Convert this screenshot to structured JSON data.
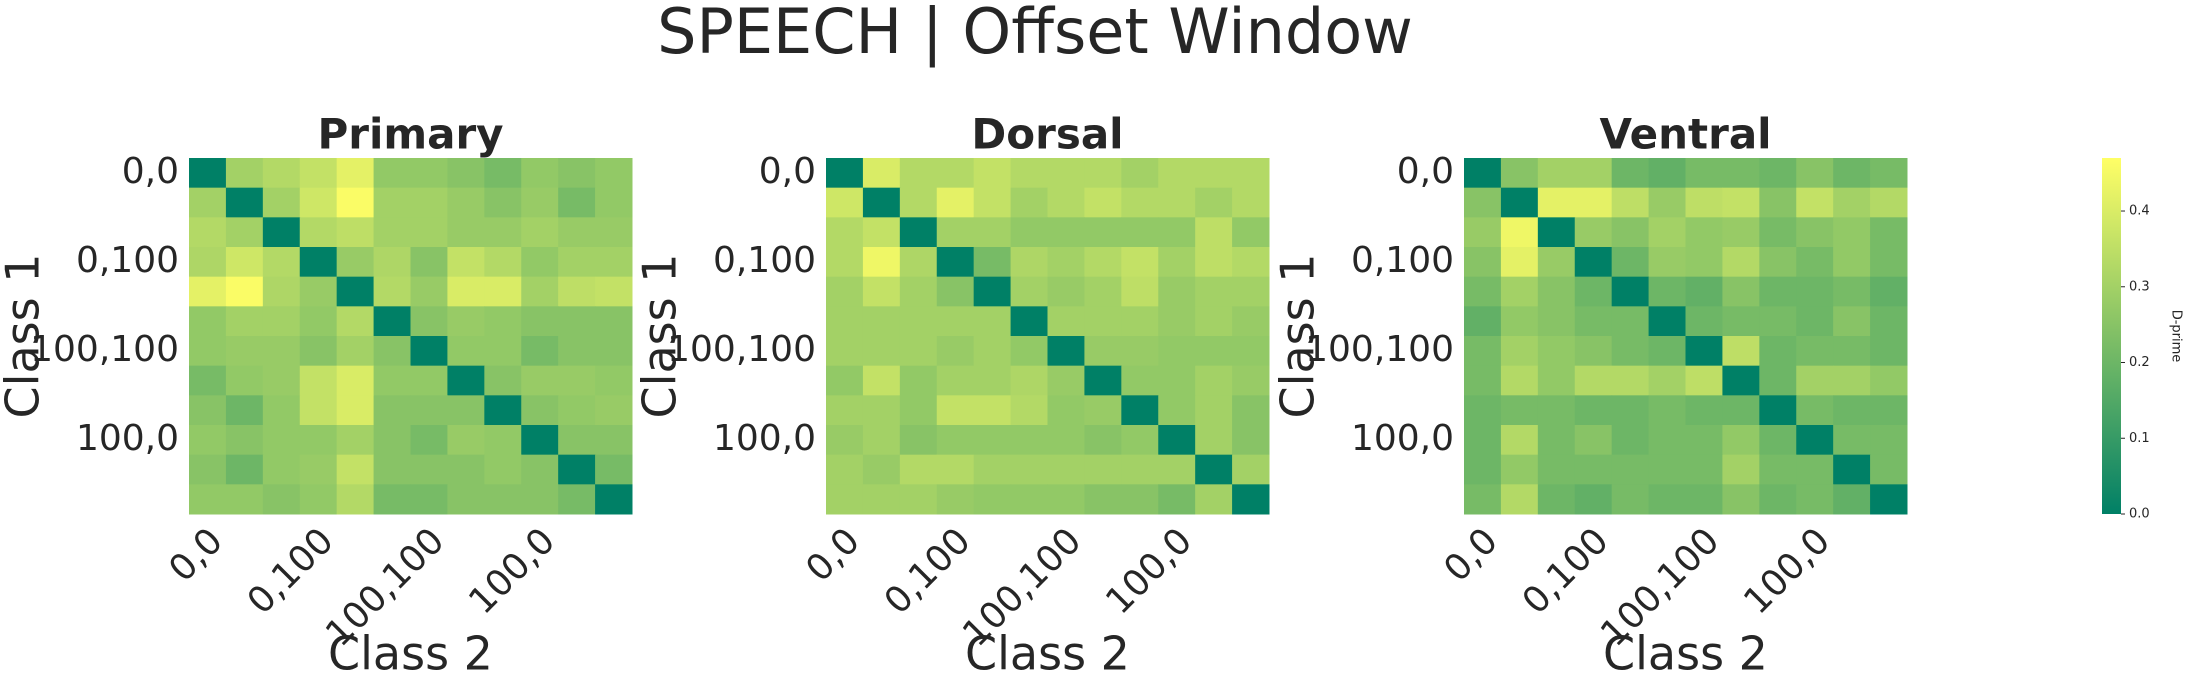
{
  "title": "SPEECH | Offset Window",
  "colorbar": {
    "label": "D-prime",
    "colormap": "summer",
    "clim": [
      0,
      0.47
    ],
    "ticks": [
      {
        "value": 0,
        "label": "0.0"
      },
      0.1,
      0.2,
      0.3,
      0.4
    ]
  },
  "chart_data": [
    {
      "type": "heatmap",
      "title": "Primary",
      "xlabel": "Class 2",
      "ylabel": "Class 1",
      "categories": [
        "0,0",
        null,
        null,
        "0,100",
        null,
        null,
        "100,100",
        null,
        null,
        "100,0",
        null,
        null
      ],
      "values": [
        [
          0,
          0.3,
          0.33,
          0.36,
          0.42,
          0.27,
          0.27,
          0.25,
          0.22,
          0.27,
          0.25,
          0.27
        ],
        [
          0.3,
          0,
          0.3,
          0.38,
          0.46,
          0.3,
          0.3,
          0.28,
          0.25,
          0.28,
          0.22,
          0.27
        ],
        [
          0.33,
          0.3,
          0,
          0.33,
          0.35,
          0.3,
          0.3,
          0.28,
          0.28,
          0.3,
          0.28,
          0.28
        ],
        [
          0.32,
          0.38,
          0.33,
          0,
          0.28,
          0.32,
          0.25,
          0.36,
          0.33,
          0.27,
          0.3,
          0.3
        ],
        [
          0.42,
          0.46,
          0.32,
          0.28,
          0,
          0.33,
          0.28,
          0.4,
          0.4,
          0.3,
          0.35,
          0.36
        ],
        [
          0.27,
          0.3,
          0.3,
          0.27,
          0.33,
          0,
          0.25,
          0.28,
          0.27,
          0.25,
          0.25,
          0.25
        ],
        [
          0.27,
          0.28,
          0.28,
          0.25,
          0.3,
          0.25,
          0,
          0.27,
          0.27,
          0.22,
          0.25,
          0.25
        ],
        [
          0.22,
          0.27,
          0.28,
          0.36,
          0.4,
          0.27,
          0.27,
          0,
          0.25,
          0.28,
          0.28,
          0.27
        ],
        [
          0.25,
          0.2,
          0.27,
          0.36,
          0.4,
          0.25,
          0.25,
          0.25,
          0,
          0.25,
          0.27,
          0.28
        ],
        [
          0.27,
          0.25,
          0.27,
          0.27,
          0.3,
          0.25,
          0.22,
          0.28,
          0.27,
          0,
          0.25,
          0.25
        ],
        [
          0.25,
          0.2,
          0.27,
          0.28,
          0.36,
          0.25,
          0.25,
          0.25,
          0.27,
          0.25,
          0,
          0.22
        ],
        [
          0.27,
          0.27,
          0.25,
          0.27,
          0.33,
          0.22,
          0.22,
          0.25,
          0.25,
          0.25,
          0.22,
          0
        ]
      ]
    },
    {
      "type": "heatmap",
      "title": "Dorsal",
      "xlabel": "Class 2",
      "ylabel": "Class 1",
      "categories": [
        "0,0",
        null,
        null,
        "0,100",
        null,
        null,
        "100,100",
        null,
        null,
        "100,0",
        null,
        null
      ],
      "values": [
        [
          0,
          0.4,
          0.33,
          0.33,
          0.36,
          0.33,
          0.33,
          0.33,
          0.3,
          0.33,
          0.33,
          0.33
        ],
        [
          0.38,
          0,
          0.33,
          0.42,
          0.36,
          0.3,
          0.33,
          0.36,
          0.33,
          0.33,
          0.3,
          0.33
        ],
        [
          0.33,
          0.36,
          0,
          0.3,
          0.3,
          0.27,
          0.27,
          0.27,
          0.27,
          0.27,
          0.35,
          0.27
        ],
        [
          0.33,
          0.44,
          0.32,
          0,
          0.22,
          0.32,
          0.3,
          0.33,
          0.36,
          0.3,
          0.35,
          0.33
        ],
        [
          0.3,
          0.36,
          0.3,
          0.25,
          0,
          0.3,
          0.28,
          0.3,
          0.35,
          0.28,
          0.3,
          0.3
        ],
        [
          0.3,
          0.3,
          0.3,
          0.3,
          0.3,
          0,
          0.3,
          0.3,
          0.3,
          0.28,
          0.3,
          0.28
        ],
        [
          0.3,
          0.3,
          0.3,
          0.28,
          0.3,
          0.27,
          0,
          0.28,
          0.28,
          0.27,
          0.27,
          0.27
        ],
        [
          0.27,
          0.36,
          0.27,
          0.3,
          0.3,
          0.32,
          0.28,
          0,
          0.27,
          0.27,
          0.3,
          0.28
        ],
        [
          0.3,
          0.3,
          0.27,
          0.36,
          0.36,
          0.33,
          0.27,
          0.28,
          0,
          0.27,
          0.3,
          0.25
        ],
        [
          0.28,
          0.3,
          0.25,
          0.27,
          0.27,
          0.27,
          0.27,
          0.25,
          0.27,
          0,
          0.3,
          0.25
        ],
        [
          0.3,
          0.28,
          0.33,
          0.33,
          0.3,
          0.3,
          0.3,
          0.3,
          0.3,
          0.3,
          0,
          0.3
        ],
        [
          0.3,
          0.3,
          0.3,
          0.28,
          0.27,
          0.27,
          0.27,
          0.25,
          0.25,
          0.22,
          0.3,
          0
        ]
      ]
    },
    {
      "type": "heatmap",
      "title": "Ventral",
      "xlabel": "Class 2",
      "ylabel": "Class 1",
      "categories": [
        "0,0",
        null,
        null,
        "0,100",
        null,
        null,
        "100,100",
        null,
        null,
        "100,0",
        null,
        null
      ],
      "values": [
        [
          0,
          0.25,
          0.3,
          0.3,
          0.2,
          0.18,
          0.22,
          0.22,
          0.2,
          0.25,
          0.2,
          0.22
        ],
        [
          0.25,
          0,
          0.42,
          0.42,
          0.35,
          0.28,
          0.35,
          0.36,
          0.25,
          0.36,
          0.3,
          0.33
        ],
        [
          0.28,
          0.44,
          0,
          0.28,
          0.25,
          0.3,
          0.27,
          0.28,
          0.22,
          0.25,
          0.27,
          0.22
        ],
        [
          0.25,
          0.42,
          0.28,
          0,
          0.2,
          0.28,
          0.27,
          0.33,
          0.25,
          0.22,
          0.27,
          0.22
        ],
        [
          0.22,
          0.3,
          0.25,
          0.2,
          0,
          0.2,
          0.18,
          0.25,
          0.2,
          0.2,
          0.22,
          0.18
        ],
        [
          0.18,
          0.27,
          0.25,
          0.22,
          0.22,
          0,
          0.2,
          0.22,
          0.22,
          0.2,
          0.25,
          0.2
        ],
        [
          0.22,
          0.3,
          0.27,
          0.25,
          0.22,
          0.2,
          0,
          0.35,
          0.2,
          0.22,
          0.22,
          0.2
        ],
        [
          0.22,
          0.33,
          0.27,
          0.33,
          0.33,
          0.3,
          0.35,
          0,
          0.2,
          0.3,
          0.3,
          0.27
        ],
        [
          0.2,
          0.22,
          0.22,
          0.2,
          0.2,
          0.22,
          0.2,
          0.2,
          0,
          0.22,
          0.2,
          0.2
        ],
        [
          0.2,
          0.33,
          0.22,
          0.25,
          0.2,
          0.22,
          0.22,
          0.27,
          0.2,
          0,
          0.22,
          0.22
        ],
        [
          0.2,
          0.27,
          0.22,
          0.22,
          0.22,
          0.22,
          0.22,
          0.3,
          0.22,
          0.22,
          0,
          0.22
        ],
        [
          0.22,
          0.33,
          0.2,
          0.18,
          0.22,
          0.2,
          0.2,
          0.25,
          0.2,
          0.22,
          0.18,
          0
        ]
      ]
    }
  ]
}
